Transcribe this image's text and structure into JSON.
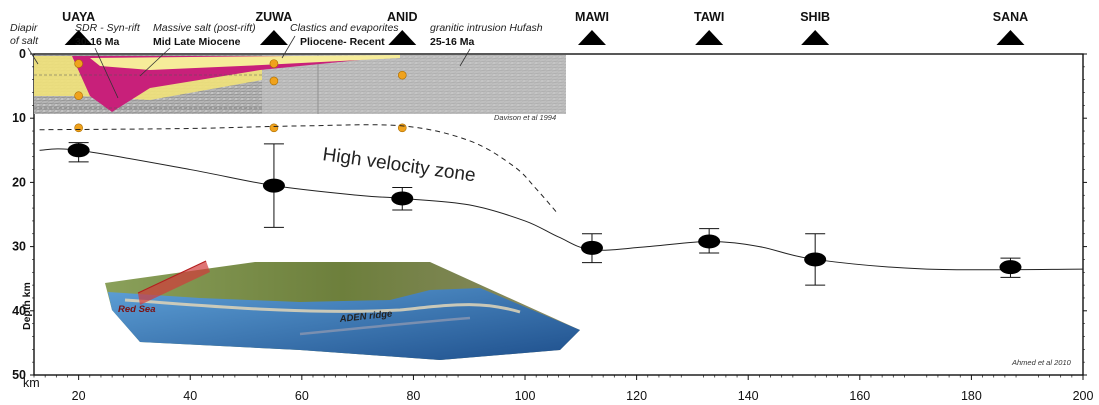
{
  "stations": [
    {
      "name": "UAYA",
      "km": 20
    },
    {
      "name": "ZUWA",
      "km": 55
    },
    {
      "name": "ANID",
      "km": 78
    },
    {
      "name": "MAWI",
      "km": 112
    },
    {
      "name": "TAWI",
      "km": 133
    },
    {
      "name": "SHIB",
      "km": 152
    },
    {
      "name": "SANA",
      "km": 187
    }
  ],
  "x_axis": {
    "unit_label": "km",
    "min": 12,
    "max": 200,
    "ticks": [
      20,
      40,
      60,
      80,
      100,
      120,
      140,
      160,
      180,
      200
    ]
  },
  "y_axis": {
    "label": "Depth km",
    "min": 0,
    "max": 50,
    "ticks": [
      0,
      10,
      20,
      30,
      40,
      50
    ]
  },
  "depth_points": [
    {
      "km": 20,
      "depth": 15,
      "err_low": 13.8,
      "err_high": 16.8
    },
    {
      "km": 55,
      "depth": 20.5,
      "err_low": 14,
      "err_high": 27
    },
    {
      "km": 78,
      "depth": 22.5,
      "err_low": 20.8,
      "err_high": 24.3
    },
    {
      "km": 112,
      "depth": 30.2,
      "err_low": 28,
      "err_high": 32.5
    },
    {
      "km": 133,
      "depth": 29.2,
      "err_low": 27.2,
      "err_high": 31
    },
    {
      "km": 152,
      "depth": 32,
      "err_low": 28,
      "err_high": 36
    },
    {
      "km": 187,
      "depth": 33.2,
      "err_low": 31.8,
      "err_high": 34.8
    }
  ],
  "moho_curve": [
    [
      13,
      15
    ],
    [
      20,
      15
    ],
    [
      40,
      18
    ],
    [
      55,
      20.5
    ],
    [
      70,
      22
    ],
    [
      78,
      22.5
    ],
    [
      90,
      23.5
    ],
    [
      100,
      26
    ],
    [
      106,
      28.5
    ],
    [
      112,
      30.5
    ],
    [
      122,
      30
    ],
    [
      133,
      29.2
    ],
    [
      142,
      30
    ],
    [
      152,
      32
    ],
    [
      172,
      33.5
    ],
    [
      200,
      33.5
    ]
  ],
  "hvz_curve": [
    [
      13,
      11.8
    ],
    [
      40,
      11.6
    ],
    [
      60,
      11.2
    ],
    [
      78,
      11.2
    ],
    [
      90,
      13.5
    ],
    [
      98,
      17.5
    ],
    [
      102,
      21
    ],
    [
      106,
      25
    ]
  ],
  "annotations": {
    "diapir": "Diapir\nof salt",
    "sdr": "SDR - Syn-rift",
    "sdr_age": "30-16 Ma",
    "salt": "Massive salt (post-rift)",
    "salt_age": "Mid Late Miocene",
    "clastics": "Clastics and evaporites",
    "clastics_age": "Pliocene- Recent",
    "granite": "granitic intrusion Hufash",
    "granite_age": "25-16 Ma",
    "hvz_label": "High velocity zone",
    "credit_top": "Davison et al 1994",
    "credit_bottom": "Ahmed et al 2010"
  },
  "map_labels": {
    "red_sea": "Red Sea",
    "aden_ridge": "ADEN ridge"
  },
  "colors": {
    "salt_magenta": "#c8207a",
    "sdr_yellow": "#f1e27a",
    "seismic_gray": "#b9b9b9",
    "marker_orange": "#f0a21c",
    "sea_blue": "#3d85c6",
    "land_green": "#6f8a3a"
  }
}
